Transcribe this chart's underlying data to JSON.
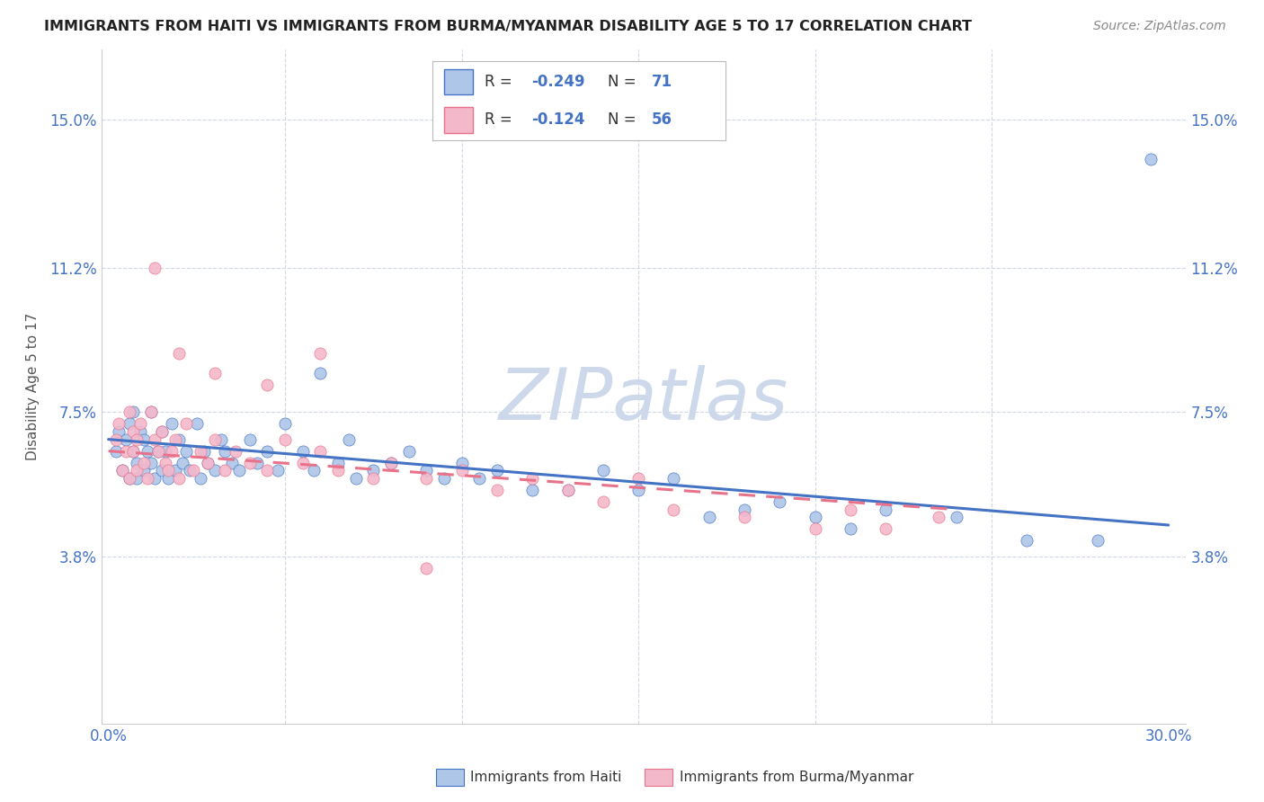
{
  "title": "IMMIGRANTS FROM HAITI VS IMMIGRANTS FROM BURMA/MYANMAR DISABILITY AGE 5 TO 17 CORRELATION CHART",
  "source": "Source: ZipAtlas.com",
  "ylabel": "Disability Age 5 to 17",
  "ytick_labels": [
    "3.8%",
    "7.5%",
    "11.2%",
    "15.0%"
  ],
  "ytick_values": [
    0.038,
    0.075,
    0.112,
    0.15
  ],
  "xlim": [
    -0.002,
    0.305
  ],
  "ylim": [
    -0.005,
    0.168
  ],
  "haiti_color": "#aec6e8",
  "burma_color": "#f4b8cb",
  "haiti_line_color": "#4472c4",
  "burma_line_color": "#e8728a",
  "haiti_scatter_x": [
    0.002,
    0.003,
    0.004,
    0.005,
    0.006,
    0.006,
    0.007,
    0.007,
    0.008,
    0.008,
    0.009,
    0.01,
    0.01,
    0.011,
    0.012,
    0.012,
    0.013,
    0.014,
    0.015,
    0.015,
    0.016,
    0.017,
    0.018,
    0.019,
    0.02,
    0.021,
    0.022,
    0.023,
    0.025,
    0.026,
    0.027,
    0.028,
    0.03,
    0.032,
    0.033,
    0.035,
    0.037,
    0.04,
    0.042,
    0.045,
    0.048,
    0.05,
    0.055,
    0.058,
    0.06,
    0.065,
    0.068,
    0.07,
    0.075,
    0.08,
    0.085,
    0.09,
    0.095,
    0.1,
    0.105,
    0.11,
    0.12,
    0.13,
    0.14,
    0.15,
    0.16,
    0.17,
    0.18,
    0.19,
    0.2,
    0.21,
    0.22,
    0.24,
    0.26,
    0.28,
    0.295
  ],
  "haiti_scatter_y": [
    0.065,
    0.07,
    0.06,
    0.068,
    0.072,
    0.058,
    0.065,
    0.075,
    0.062,
    0.058,
    0.07,
    0.068,
    0.06,
    0.065,
    0.075,
    0.062,
    0.058,
    0.065,
    0.07,
    0.06,
    0.065,
    0.058,
    0.072,
    0.06,
    0.068,
    0.062,
    0.065,
    0.06,
    0.072,
    0.058,
    0.065,
    0.062,
    0.06,
    0.068,
    0.065,
    0.062,
    0.06,
    0.068,
    0.062,
    0.065,
    0.06,
    0.072,
    0.065,
    0.06,
    0.085,
    0.062,
    0.068,
    0.058,
    0.06,
    0.062,
    0.065,
    0.06,
    0.058,
    0.062,
    0.058,
    0.06,
    0.055,
    0.055,
    0.06,
    0.055,
    0.058,
    0.048,
    0.05,
    0.052,
    0.048,
    0.045,
    0.05,
    0.048,
    0.042,
    0.042,
    0.14
  ],
  "burma_scatter_x": [
    0.002,
    0.003,
    0.004,
    0.005,
    0.006,
    0.006,
    0.007,
    0.007,
    0.008,
    0.008,
    0.009,
    0.01,
    0.011,
    0.012,
    0.013,
    0.014,
    0.015,
    0.016,
    0.017,
    0.018,
    0.019,
    0.02,
    0.022,
    0.024,
    0.026,
    0.028,
    0.03,
    0.033,
    0.036,
    0.04,
    0.045,
    0.05,
    0.055,
    0.06,
    0.065,
    0.075,
    0.08,
    0.09,
    0.1,
    0.11,
    0.12,
    0.13,
    0.14,
    0.15,
    0.16,
    0.18,
    0.2,
    0.21,
    0.22,
    0.235,
    0.013,
    0.02,
    0.03,
    0.045,
    0.06,
    0.09
  ],
  "burma_scatter_y": [
    0.068,
    0.072,
    0.06,
    0.065,
    0.075,
    0.058,
    0.07,
    0.065,
    0.06,
    0.068,
    0.072,
    0.062,
    0.058,
    0.075,
    0.068,
    0.065,
    0.07,
    0.062,
    0.06,
    0.065,
    0.068,
    0.058,
    0.072,
    0.06,
    0.065,
    0.062,
    0.068,
    0.06,
    0.065,
    0.062,
    0.06,
    0.068,
    0.062,
    0.065,
    0.06,
    0.058,
    0.062,
    0.058,
    0.06,
    0.055,
    0.058,
    0.055,
    0.052,
    0.058,
    0.05,
    0.048,
    0.045,
    0.05,
    0.045,
    0.048,
    0.112,
    0.09,
    0.085,
    0.082,
    0.09,
    0.035
  ],
  "haiti_trend_x": [
    0.0,
    0.3
  ],
  "haiti_trend_y": [
    0.068,
    0.046
  ],
  "burma_trend_x": [
    0.0,
    0.24
  ],
  "burma_trend_y": [
    0.065,
    0.05
  ],
  "background_color": "#ffffff",
  "grid_color": "#d0d8e8",
  "watermark": "ZIPatlas",
  "watermark_color": "#cdd8ea"
}
